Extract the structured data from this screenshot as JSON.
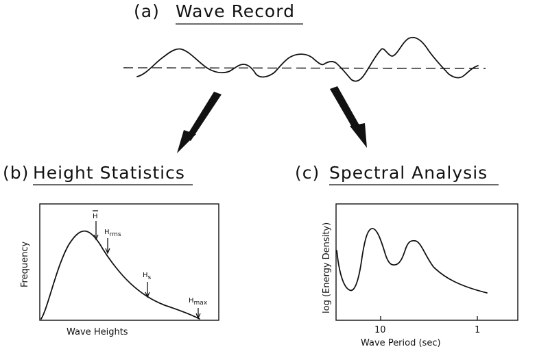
{
  "panel_a": {
    "letter": "(a)",
    "title": "Wave Record"
  },
  "panel_b": {
    "letter": "(b)",
    "title": "Height Statistics",
    "ylabel": "Frequency",
    "xlabel": "Wave Heights",
    "markers": {
      "mean": "H",
      "rms_base": "H",
      "rms_sub": "rms",
      "sig_base": "H",
      "sig_sub": "s",
      "max_base": "H",
      "max_sub": "max"
    }
  },
  "panel_c": {
    "letter": "(c)",
    "title": "Spectral Analysis",
    "ylabel": "log (Energy Density)",
    "xlabel": "Wave Period (sec)",
    "ticks": [
      "10",
      "1"
    ]
  }
}
